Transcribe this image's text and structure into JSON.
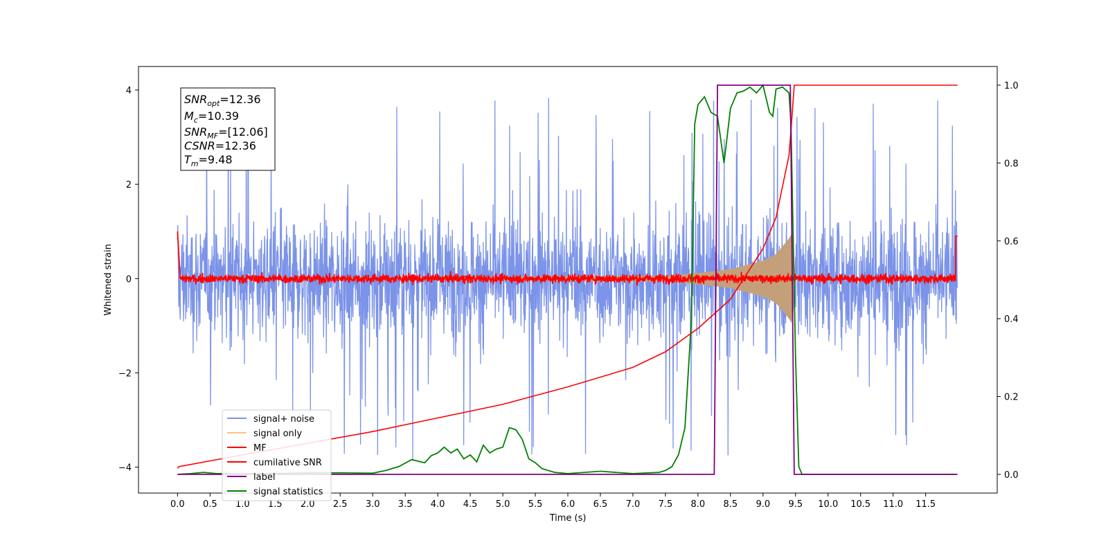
{
  "chart_data": {
    "type": "line",
    "xlabel": "Time (s)",
    "ylabel": "Whitened strain",
    "xlim": [
      -0.6,
      12.6
    ],
    "ylim": [
      -4.55,
      4.5
    ],
    "y2lim": [
      -0.048,
      1.048
    ],
    "x_tick_labels": [
      "0.0",
      "0.5",
      "1.0",
      "1.5",
      "2.0",
      "2.5",
      "3.0",
      "3.5",
      "4.0",
      "4.5",
      "5.0",
      "5.5",
      "6.0",
      "6.5",
      "7.0",
      "7.5",
      "8.0",
      "8.5",
      "9.0",
      "9.5",
      "10.0",
      "10.5",
      "11.0",
      "11.5"
    ],
    "y_tick_labels": [
      "4",
      "2",
      "0",
      "−2",
      "−4"
    ],
    "y2_tick_labels": [
      "1.0",
      "0.8",
      "0.6",
      "0.4",
      "0.2",
      "0.0"
    ],
    "info_box": {
      "snr_opt": "=12.36",
      "mc": "=10.39",
      "snr_mf": "=[12.06]",
      "csnr": "=12.36",
      "tm": "=9.48"
    },
    "legend": {
      "position": "lower-left",
      "entries": [
        "signal+ noise",
        "signal only",
        "MF",
        "cumilative SNR",
        "label",
        "signal statistics"
      ]
    },
    "colors": {
      "signal_noise": "#7b93e8",
      "signal_only": "#f5c77e",
      "signal_fill": "#c4a07a",
      "mf": "#ff0000",
      "cumulative_snr": "#ff0000",
      "label": "#800080",
      "signal_statistics": "#008000"
    },
    "series": [
      {
        "name": "signal+ noise",
        "axis": "left",
        "description_kind": "noise",
        "x_range": [
          0.0,
          11.99
        ],
        "typical_amplitude": 1.6,
        "peak_amplitude": 3.9
      },
      {
        "name": "signal only",
        "axis": "left",
        "x": [
          0.0,
          7.5,
          8.0,
          8.5,
          9.0,
          9.2,
          9.4,
          9.46,
          9.48,
          9.5
        ],
        "envelope": [
          0.0,
          0.06,
          0.12,
          0.2,
          0.38,
          0.52,
          0.85,
          1.0,
          0.3,
          0.0
        ]
      },
      {
        "name": "MF",
        "axis": "left",
        "description_kind": "noise",
        "x_range": [
          0.0,
          11.99
        ],
        "typical_amplitude": 0.12,
        "peak_amplitude": 0.3
      },
      {
        "name": "cumilative SNR",
        "axis": "right",
        "x": [
          0.0,
          0.02,
          1.0,
          2.0,
          3.0,
          4.0,
          5.0,
          6.0,
          7.0,
          7.5,
          8.0,
          8.5,
          9.0,
          9.2,
          9.4,
          9.45,
          9.48,
          11.99
        ],
        "y": [
          0.015,
          0.02,
          0.05,
          0.08,
          0.11,
          0.145,
          0.18,
          0.225,
          0.275,
          0.315,
          0.375,
          0.45,
          0.58,
          0.66,
          0.82,
          0.93,
          1.0,
          1.0
        ]
      },
      {
        "name": "label",
        "axis": "right",
        "x": [
          0.0,
          8.25,
          8.3,
          9.42,
          9.48,
          11.99
        ],
        "y": [
          0.0,
          0.0,
          1.0,
          1.0,
          0.0,
          0.0
        ]
      },
      {
        "name": "signal statistics",
        "axis": "right",
        "x": [
          0.0,
          0.2,
          0.4,
          0.6,
          1.0,
          1.5,
          2.0,
          2.5,
          3.0,
          3.2,
          3.4,
          3.6,
          3.8,
          3.9,
          4.0,
          4.1,
          4.2,
          4.3,
          4.4,
          4.5,
          4.6,
          4.7,
          4.8,
          4.9,
          5.0,
          5.1,
          5.2,
          5.3,
          5.4,
          5.5,
          5.6,
          5.8,
          6.0,
          6.5,
          7.0,
          7.4,
          7.5,
          7.6,
          7.7,
          7.8,
          7.9,
          7.95,
          8.0,
          8.1,
          8.2,
          8.3,
          8.4,
          8.45,
          8.5,
          8.6,
          8.7,
          8.8,
          8.9,
          9.0,
          9.1,
          9.15,
          9.2,
          9.3,
          9.4,
          9.43,
          9.5,
          9.55,
          9.6,
          10.0,
          11.0,
          11.95
        ],
        "y": [
          0.0,
          0.002,
          0.005,
          0.002,
          0.002,
          0.002,
          0.004,
          0.004,
          0.003,
          0.01,
          0.02,
          0.038,
          0.03,
          0.048,
          0.055,
          0.07,
          0.055,
          0.065,
          0.04,
          0.05,
          0.032,
          0.075,
          0.055,
          0.065,
          0.07,
          0.12,
          0.115,
          0.09,
          0.04,
          0.03,
          0.015,
          0.005,
          0.002,
          0.008,
          0.002,
          0.005,
          0.01,
          0.02,
          0.05,
          0.12,
          0.4,
          0.9,
          0.95,
          0.97,
          0.93,
          0.92,
          0.8,
          0.87,
          0.94,
          0.98,
          0.985,
          0.995,
          0.98,
          1.0,
          0.93,
          0.92,
          0.99,
          0.995,
          0.98,
          0.9,
          0.3,
          0.02,
          0.0,
          0.0,
          0.0,
          0.0
        ]
      }
    ]
  }
}
